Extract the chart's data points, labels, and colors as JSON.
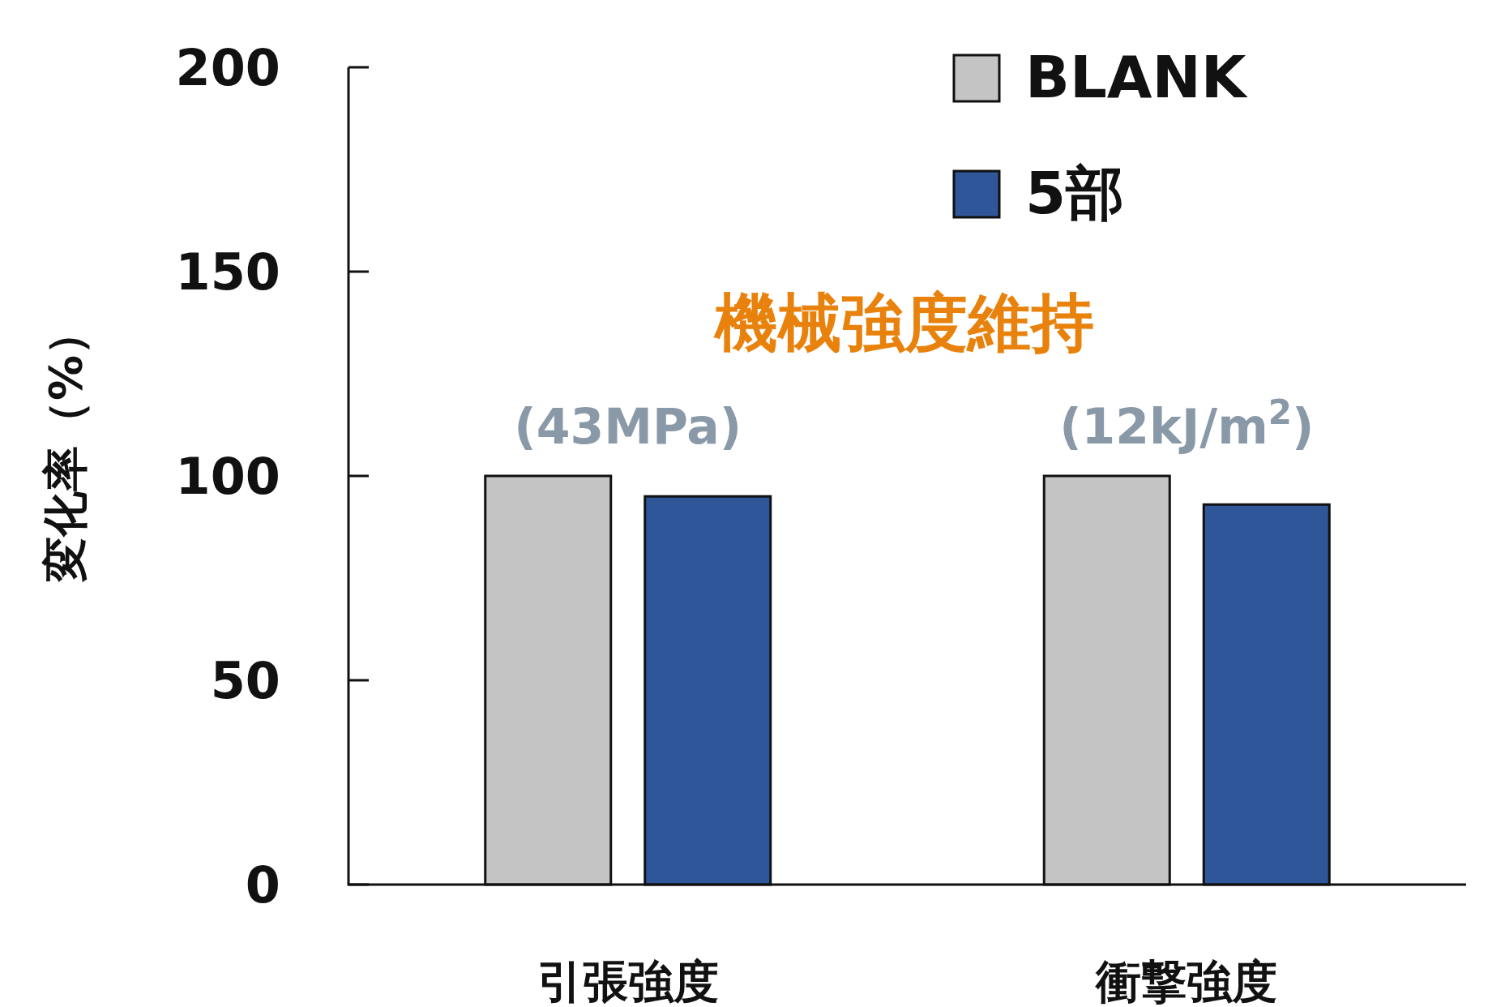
{
  "chart_data": {
    "type": "bar",
    "ylabel": "変化率（%）",
    "categories": [
      "引張強度",
      "衝撃強度"
    ],
    "series": [
      {
        "name": "BLANK",
        "color": "#c4c4c4",
        "values": [
          100,
          100
        ]
      },
      {
        "name": "5部",
        "color": "#30569a",
        "values": [
          95,
          93
        ]
      }
    ],
    "ylim": [
      0,
      200
    ],
    "yticks": [
      0,
      50,
      100,
      150,
      200
    ],
    "grid": false,
    "legend": "top right",
    "annotations": [
      "機械強度維持",
      "(43MPa)",
      "(12kJ/m$^{2}$)"
    ]
  }
}
